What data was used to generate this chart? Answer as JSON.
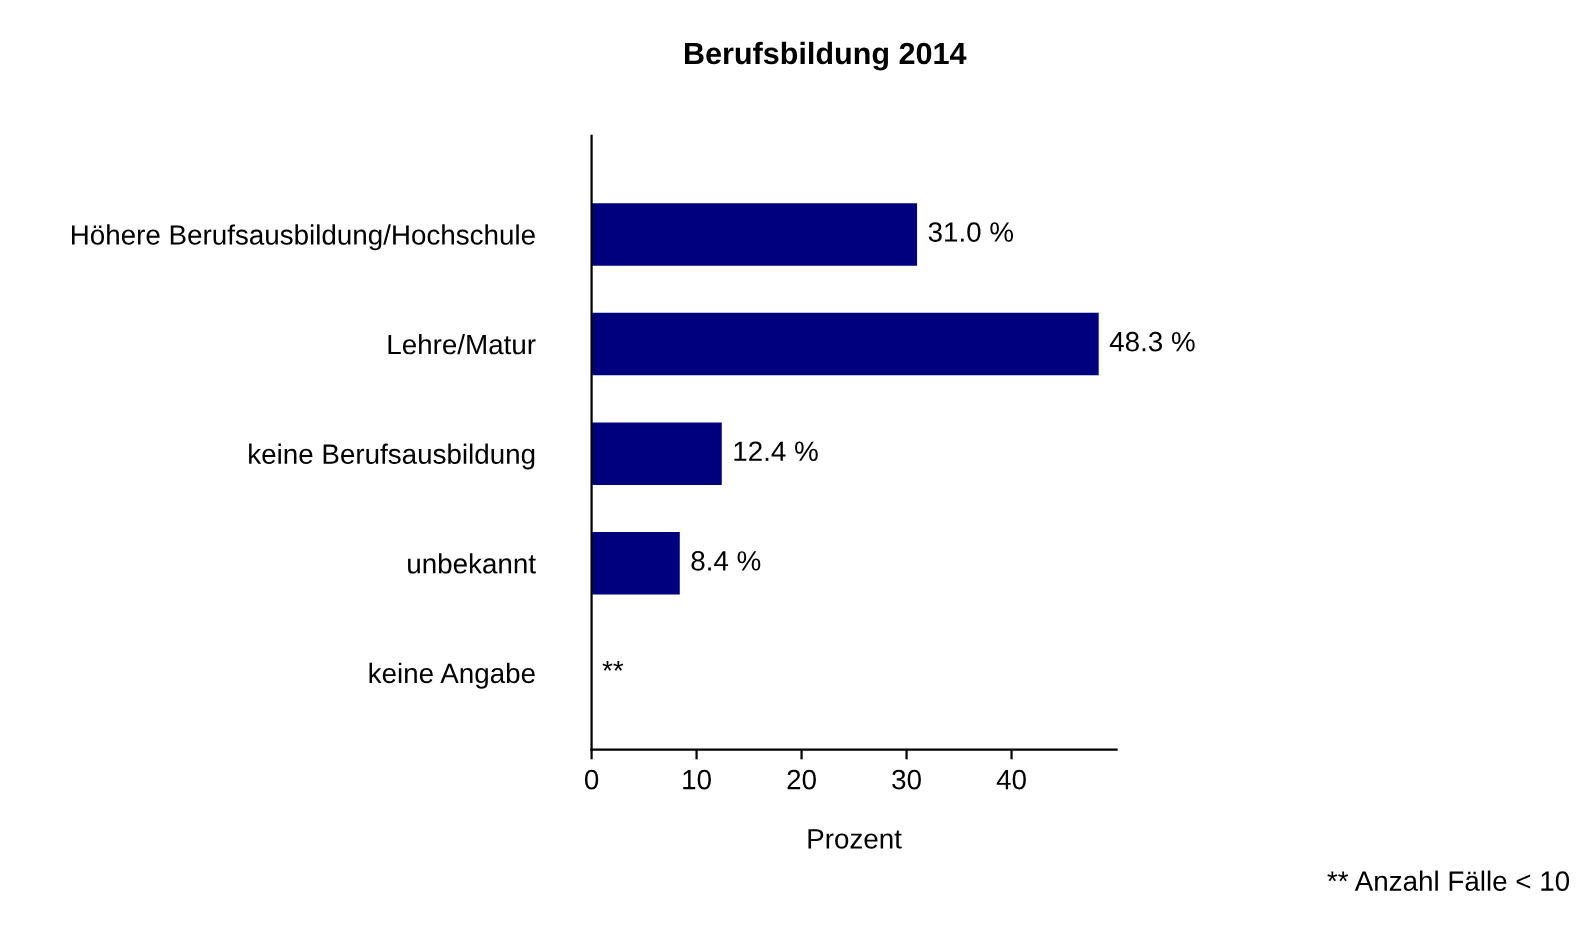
{
  "chart_data": {
    "type": "bar",
    "orientation": "horizontal",
    "title": "Berufsbildung 2014",
    "xlabel": "Prozent",
    "categories": [
      "Höhere Berufsausbildung/Hochschule",
      "Lehre/Matur",
      "keine Berufsausbildung",
      "unbekannt",
      "keine Angabe"
    ],
    "values": [
      31.0,
      48.3,
      12.4,
      8.4,
      null
    ],
    "value_labels": [
      "31.0 %",
      "48.3 %",
      "12.4 %",
      "8.4 %",
      "**"
    ],
    "color": "#00007f",
    "xlim": [
      0,
      50
    ],
    "xticks": [
      0,
      10,
      20,
      30,
      40
    ],
    "grid": false,
    "annotations": [
      "** Anzahl Fälle < 10"
    ]
  }
}
